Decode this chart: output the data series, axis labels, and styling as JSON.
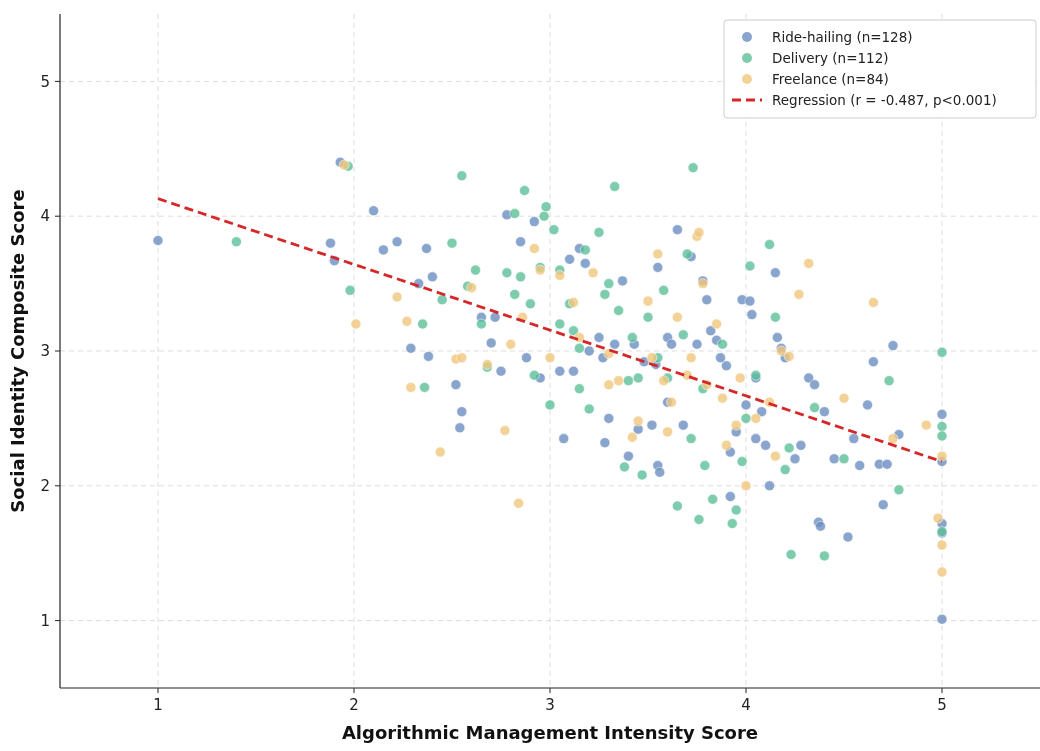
{
  "chart_data": {
    "type": "scatter",
    "xlabel": "Algorithmic Management Intensity Score",
    "ylabel": "Social Identity Composite Score",
    "xlim": [
      0.5,
      5.5
    ],
    "ylim": [
      0.5,
      5.5
    ],
    "xticks": [
      1,
      2,
      3,
      4,
      5
    ],
    "yticks": [
      1,
      2,
      3,
      4,
      5
    ],
    "grid": true,
    "legend": "top right",
    "marker": "circle",
    "series": [
      {
        "name": "Ride-hailing (n=128)",
        "color": "#6b8fc0",
        "x": [
          1.0,
          1.88,
          1.9,
          1.93,
          2.1,
          2.15,
          2.22,
          2.29,
          2.33,
          2.37,
          2.38,
          2.4,
          2.52,
          2.55,
          2.54,
          2.65,
          2.7,
          2.72,
          2.75,
          2.78,
          2.85,
          2.88,
          2.92,
          3.05,
          3.07,
          3.1,
          3.15,
          3.18,
          3.2,
          3.25,
          3.27,
          3.28,
          3.3,
          3.33,
          3.37,
          3.4,
          3.43,
          3.45,
          3.48,
          3.52,
          3.54,
          3.55,
          3.55,
          3.56,
          3.6,
          3.62,
          3.65,
          3.68,
          3.72,
          3.75,
          3.78,
          3.8,
          3.82,
          3.85,
          3.87,
          3.9,
          3.92,
          3.92,
          3.95,
          3.98,
          4.0,
          4.02,
          4.03,
          4.05,
          4.08,
          4.1,
          4.12,
          4.15,
          4.16,
          4.18,
          4.2,
          4.25,
          4.28,
          4.32,
          4.35,
          4.37,
          4.38,
          4.4,
          4.45,
          4.52,
          4.55,
          4.58,
          4.62,
          4.65,
          4.68,
          4.7,
          4.72,
          4.75,
          4.78,
          5.0,
          5.0,
          5.0,
          5.0,
          5.0,
          2.95,
          3.12,
          3.6,
          4.05
        ],
        "values": [
          3.82,
          3.8,
          3.67,
          4.4,
          4.04,
          3.75,
          3.81,
          3.02,
          3.5,
          3.76,
          2.96,
          3.55,
          2.75,
          2.55,
          2.43,
          3.25,
          3.06,
          3.25,
          2.85,
          4.01,
          3.81,
          2.95,
          3.96,
          2.85,
          2.35,
          3.68,
          3.76,
          3.65,
          3.0,
          3.1,
          2.95,
          2.32,
          2.5,
          3.05,
          3.52,
          2.22,
          3.05,
          2.42,
          2.92,
          2.45,
          2.9,
          3.62,
          2.15,
          2.1,
          3.1,
          3.05,
          3.9,
          2.45,
          3.7,
          3.05,
          3.52,
          3.38,
          3.15,
          3.08,
          2.95,
          2.89,
          2.25,
          1.92,
          2.4,
          3.38,
          2.6,
          3.37,
          3.27,
          2.8,
          2.55,
          2.3,
          2.0,
          3.58,
          3.1,
          3.02,
          2.95,
          2.2,
          2.3,
          2.8,
          2.75,
          1.73,
          1.7,
          2.55,
          2.2,
          1.62,
          2.35,
          2.15,
          2.6,
          2.92,
          2.16,
          1.86,
          2.16,
          3.04,
          2.38,
          2.53,
          2.18,
          1.72,
          1.65,
          1.01,
          2.8,
          2.85,
          2.62,
          2.35
        ]
      },
      {
        "name": "Delivery (n=112)",
        "color": "#5cbf98",
        "x": [
          1.4,
          1.97,
          1.98,
          2.35,
          2.36,
          2.45,
          2.5,
          2.55,
          2.58,
          2.62,
          2.65,
          2.68,
          2.78,
          2.82,
          2.82,
          2.85,
          2.87,
          2.9,
          2.92,
          2.95,
          2.97,
          2.98,
          3.0,
          3.02,
          3.05,
          3.05,
          3.1,
          3.12,
          3.15,
          3.18,
          3.2,
          3.25,
          3.28,
          3.3,
          3.33,
          3.35,
          3.38,
          3.42,
          3.45,
          3.47,
          3.5,
          3.55,
          3.58,
          3.6,
          3.65,
          3.68,
          3.7,
          3.73,
          3.76,
          3.78,
          3.79,
          3.83,
          3.88,
          3.93,
          3.95,
          3.98,
          4.02,
          4.05,
          4.12,
          4.15,
          4.2,
          4.22,
          4.23,
          4.35,
          4.4,
          4.5,
          4.73,
          4.78,
          5.0,
          5.0,
          5.0,
          5.0,
          3.15,
          3.4,
          3.72,
          4.0
        ],
        "values": [
          3.81,
          4.37,
          3.45,
          3.2,
          2.73,
          3.38,
          3.8,
          4.3,
          3.48,
          3.6,
          3.2,
          2.88,
          3.58,
          4.02,
          3.42,
          3.55,
          4.19,
          3.35,
          2.82,
          3.62,
          4.0,
          4.07,
          2.6,
          3.9,
          3.6,
          3.2,
          3.35,
          3.15,
          3.02,
          3.75,
          2.57,
          3.88,
          3.42,
          3.5,
          4.22,
          3.3,
          2.14,
          3.1,
          2.8,
          2.08,
          3.25,
          2.95,
          3.45,
          2.8,
          1.85,
          3.12,
          3.72,
          4.36,
          1.75,
          2.72,
          2.15,
          1.9,
          3.05,
          1.72,
          1.82,
          2.18,
          3.63,
          2.82,
          3.79,
          3.25,
          2.12,
          2.28,
          1.49,
          2.58,
          1.48,
          2.2,
          2.78,
          1.97,
          2.99,
          2.44,
          2.37,
          1.66,
          2.72,
          2.78,
          2.35,
          2.5
        ]
      },
      {
        "name": "Freelance (n=84)",
        "color": "#f0c77e",
        "x": [
          1.95,
          2.01,
          2.22,
          2.27,
          2.29,
          2.44,
          2.52,
          2.55,
          2.6,
          2.68,
          2.77,
          2.8,
          2.84,
          2.86,
          2.92,
          2.95,
          3.0,
          3.05,
          3.12,
          3.15,
          3.22,
          3.3,
          3.35,
          3.42,
          3.45,
          3.5,
          3.52,
          3.55,
          3.58,
          3.6,
          3.65,
          3.7,
          3.72,
          3.75,
          3.76,
          3.78,
          3.8,
          3.85,
          3.88,
          3.9,
          3.95,
          3.97,
          4.0,
          4.05,
          4.12,
          4.15,
          4.18,
          4.22,
          4.27,
          4.32,
          4.5,
          4.65,
          4.75,
          4.92,
          4.98,
          5.0,
          5.0,
          5.0,
          3.3,
          3.62
        ],
        "values": [
          4.38,
          3.2,
          3.4,
          3.22,
          2.73,
          2.25,
          2.94,
          2.95,
          3.47,
          2.9,
          2.41,
          3.05,
          1.87,
          3.25,
          3.76,
          3.6,
          2.95,
          3.56,
          3.36,
          3.1,
          3.58,
          2.75,
          2.78,
          2.36,
          2.48,
          3.37,
          2.95,
          3.72,
          2.78,
          2.4,
          3.25,
          2.82,
          2.95,
          3.85,
          3.88,
          3.5,
          2.75,
          3.2,
          2.65,
          2.3,
          2.45,
          2.8,
          2.0,
          2.5,
          2.62,
          2.22,
          3.0,
          2.96,
          3.42,
          3.65,
          2.65,
          3.36,
          2.35,
          2.45,
          1.76,
          2.22,
          1.56,
          1.36,
          2.98,
          2.62
        ]
      },
      {
        "name": "Regression (r = -0.487, p<0.001)",
        "type": "line",
        "color": "#d62728",
        "x": [
          1,
          5
        ],
        "values": [
          4.13,
          2.18
        ],
        "line_style": "dashed",
        "marker": "none"
      }
    ]
  }
}
